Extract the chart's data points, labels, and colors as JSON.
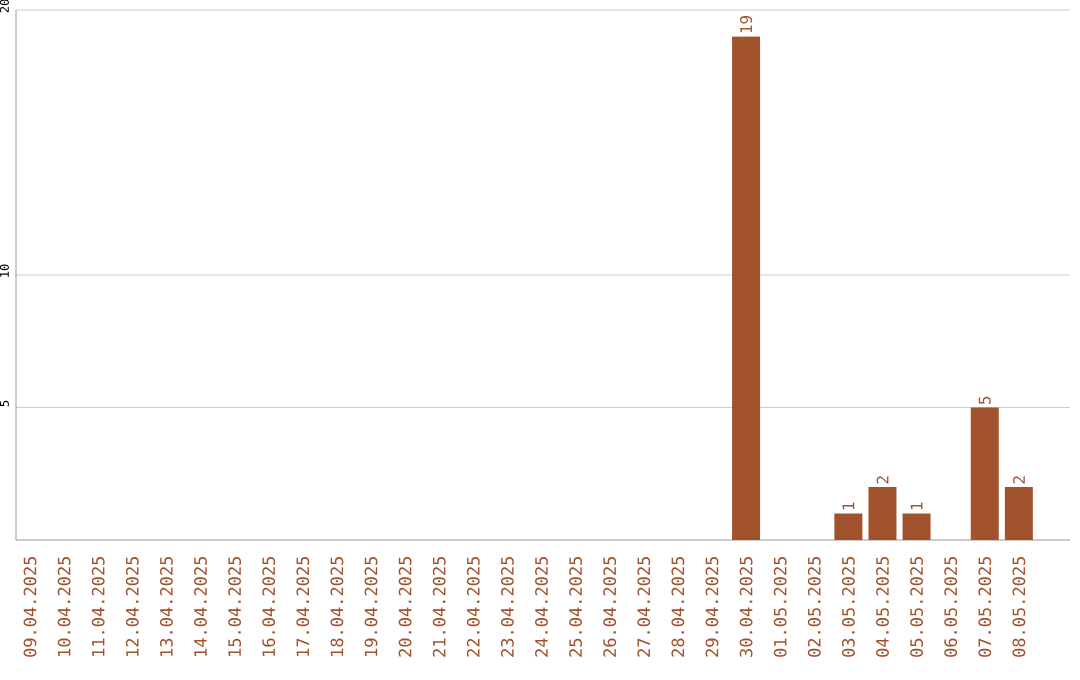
{
  "chart_data": {
    "type": "bar",
    "categories": [
      "09.04.2025",
      "10.04.2025",
      "11.04.2025",
      "12.04.2025",
      "13.04.2025",
      "14.04.2025",
      "15.04.2025",
      "16.04.2025",
      "17.04.2025",
      "18.04.2025",
      "19.04.2025",
      "20.04.2025",
      "21.04.2025",
      "22.04.2025",
      "23.04.2025",
      "24.04.2025",
      "25.04.2025",
      "26.04.2025",
      "27.04.2025",
      "28.04.2025",
      "29.04.2025",
      "30.04.2025",
      "01.05.2025",
      "02.05.2025",
      "03.05.2025",
      "04.05.2025",
      "05.05.2025",
      "06.05.2025",
      "07.05.2025",
      "08.05.2025"
    ],
    "values": [
      0,
      0,
      0,
      0,
      0,
      0,
      0,
      0,
      0,
      0,
      0,
      0,
      0,
      0,
      0,
      0,
      0,
      0,
      0,
      0,
      0,
      19,
      0,
      0,
      1,
      2,
      1,
      0,
      5,
      2
    ],
    "value_labels": [
      null,
      null,
      null,
      null,
      null,
      null,
      null,
      null,
      null,
      null,
      null,
      null,
      null,
      null,
      null,
      null,
      null,
      null,
      null,
      null,
      null,
      "19",
      null,
      null,
      "1",
      "2",
      "1",
      null,
      "5",
      "2"
    ],
    "color": "#a0522d",
    "ylim": [
      0,
      20
    ],
    "yticks": [
      5,
      10,
      20
    ],
    "grid": "y"
  }
}
